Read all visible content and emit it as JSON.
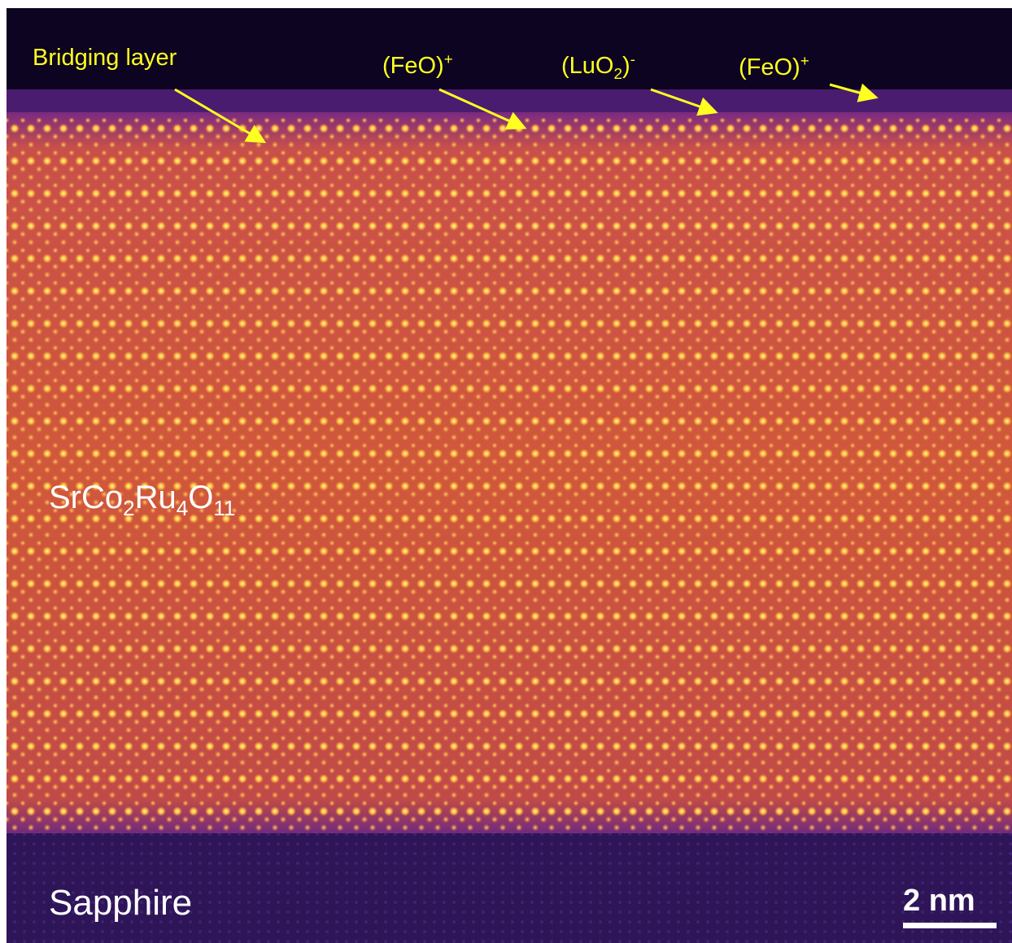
{
  "annotations": [
    {
      "parts": [
        {
          "text": "Bridging layer"
        }
      ]
    },
    {
      "parts": [
        {
          "text": "(FeO)"
        },
        {
          "sup": "+"
        }
      ]
    },
    {
      "parts": [
        {
          "text": "(LuO"
        },
        {
          "sub": "2"
        },
        {
          "text": ")"
        },
        {
          "sup": "-"
        }
      ]
    },
    {
      "parts": [
        {
          "text": "(FeO)"
        },
        {
          "sup": "+"
        }
      ]
    }
  ],
  "film": {
    "parts": [
      {
        "text": "SrCo"
      },
      {
        "sub": "2"
      },
      {
        "text": "Ru"
      },
      {
        "sub": "4"
      },
      {
        "text": "O"
      },
      {
        "sub": "11"
      }
    ]
  },
  "substrate": {
    "parts": [
      {
        "text": "Sapphire"
      }
    ]
  },
  "scale_bar": {
    "parts": [
      {
        "text": "2 nm"
      }
    ]
  }
}
